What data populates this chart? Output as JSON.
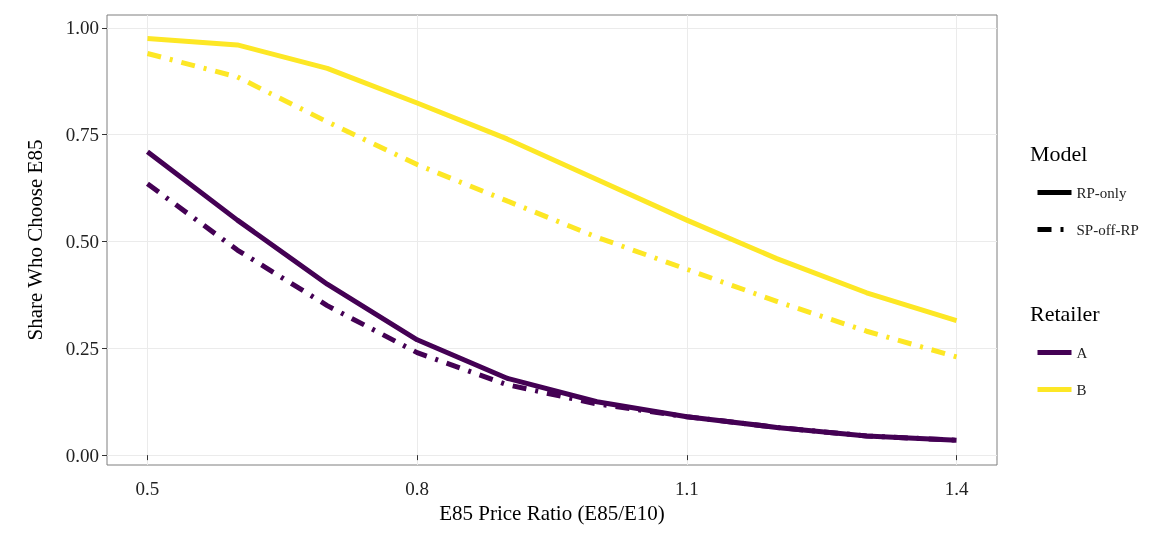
{
  "chart_data": {
    "type": "line",
    "xlabel": "E85 Price Ratio (E85/E10)",
    "ylabel": "Share Who Choose E85",
    "legend_title": [
      "Model",
      "Retailer"
    ],
    "x": [
      0.5,
      0.6,
      0.7,
      0.8,
      0.9,
      1.0,
      1.1,
      1.2,
      1.3,
      1.4
    ],
    "series": [
      {
        "name": "RP-only",
        "color": "#000000",
        "line_style": "solid",
        "values": [
          null,
          null,
          null,
          null,
          null,
          null,
          null,
          null,
          null,
          null
        ]
      },
      {
        "name": "SP-off-RP",
        "color": "#000000",
        "line_style": "dashed",
        "values": [
          null,
          null,
          null,
          null,
          null,
          null,
          null,
          null,
          null,
          null
        ]
      },
      {
        "name": "A",
        "color": "#440154",
        "line_style": "solid",
        "values": [
          0.71,
          0.55,
          0.4,
          0.27,
          0.18,
          0.125,
          0.09,
          0.065,
          0.045,
          0.035
        ]
      },
      {
        "name": "B",
        "color": "#fde725",
        "line_style": "solid",
        "values": [
          0.975,
          0.96,
          0.905,
          0.824,
          0.74,
          0.645,
          0.55,
          0.46,
          0.38,
          0.315
        ]
      },
      {
        "color": "#440154",
        "line_style": "dashed",
        "values": [
          0.635,
          0.48,
          0.35,
          0.24,
          0.165,
          0.12,
          0.09,
          0.065,
          0.045,
          0.035
        ]
      },
      {
        "color": "#fde725",
        "line_style": "dashed",
        "values": [
          0.94,
          0.885,
          0.78,
          0.68,
          0.595,
          0.51,
          0.435,
          0.36,
          0.29,
          0.23
        ]
      }
    ],
    "xlim": [
      0.455,
      1.445
    ],
    "xticks": [
      0.5,
      0.8,
      1.1,
      1.4
    ],
    "ylim": [
      -0.023,
      1.03
    ],
    "yticks": [
      {
        "value": 0,
        "label": "0.00"
      },
      {
        "value": 0.25,
        "label": "0.25"
      },
      {
        "value": 0.5,
        "label": "0.50"
      },
      {
        "value": 0.75,
        "label": "0.75"
      },
      {
        "value": 1,
        "label": "1.00"
      }
    ],
    "grid": true,
    "legend": "right",
    "marker": "none"
  }
}
